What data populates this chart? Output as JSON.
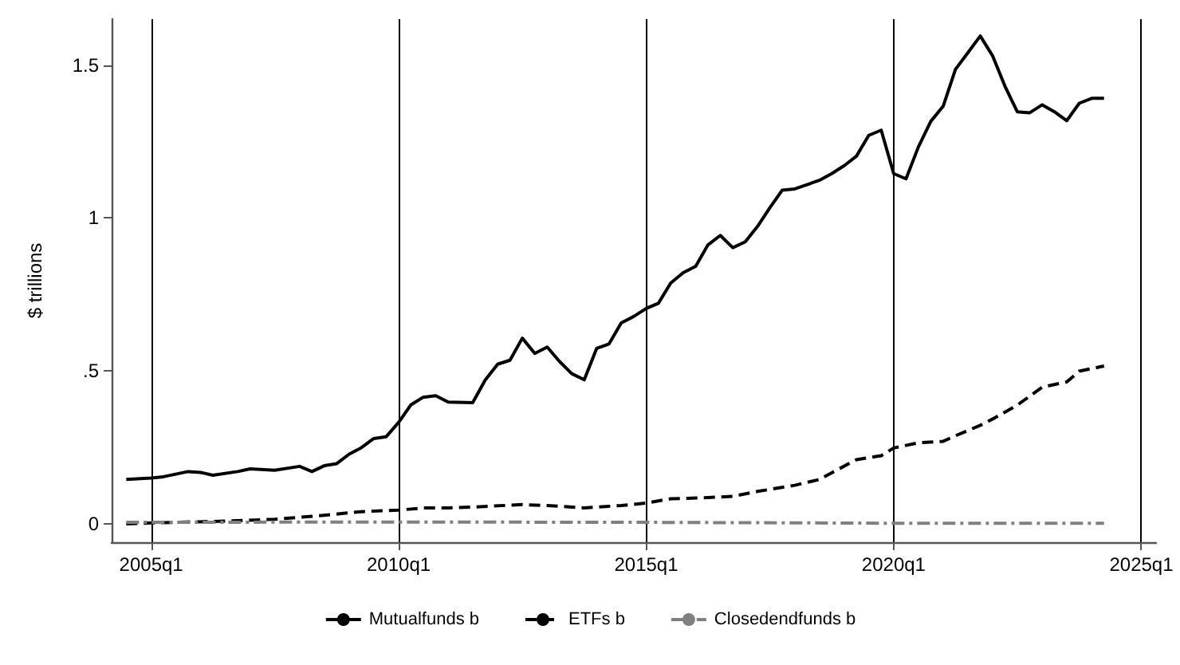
{
  "chart_data": {
    "type": "line",
    "ylabel": "$ trillions",
    "xlim": [
      "2004-03-15",
      "2025-04-20"
    ],
    "ylim": [
      -0.06,
      1.65
    ],
    "xticks": [
      {
        "value": "2005-01",
        "label": "2005q1"
      },
      {
        "value": "2010-01",
        "label": "2010q1"
      },
      {
        "value": "2015-01",
        "label": "2015q1"
      },
      {
        "value": "2020-01",
        "label": "2020q1"
      },
      {
        "value": "2025-01",
        "label": "2025q1"
      }
    ],
    "yticks": [
      0,
      {
        "value": 0.5,
        "label": ".5"
      },
      1,
      1.5
    ],
    "grid": "x",
    "legend": "bottom",
    "marker": "none",
    "series": [
      {
        "name": "Mutualfunds b",
        "color": "#000000",
        "line_style": "solid",
        "x": [
          "2004-07",
          "2005-01",
          "2005-04",
          "2005-10",
          "2006-01",
          "2006-04",
          "2006-10",
          "2007-01",
          "2007-07",
          "2008-01",
          "2008-04",
          "2008-07",
          "2008-10",
          "2009-01",
          "2009-04",
          "2009-07",
          "2009-10",
          "2010-01",
          "2010-04",
          "2010-07",
          "2010-10",
          "2011-01",
          "2011-07",
          "2011-10",
          "2012-01",
          "2012-04",
          "2012-07",
          "2012-10",
          "2013-01",
          "2013-04",
          "2013-07",
          "2013-10",
          "2014-01",
          "2014-04",
          "2014-07",
          "2014-10",
          "2015-01",
          "2015-04",
          "2015-07",
          "2015-10",
          "2016-01",
          "2016-04",
          "2016-07",
          "2016-10",
          "2017-01",
          "2017-04",
          "2017-07",
          "2017-10",
          "2018-01",
          "2018-07",
          "2018-10",
          "2019-01",
          "2019-04",
          "2019-07",
          "2019-10",
          "2020-01",
          "2020-04",
          "2020-07",
          "2020-10",
          "2021-01",
          "2021-04",
          "2021-07",
          "2021-10",
          "2022-01",
          "2022-04",
          "2022-07",
          "2022-10",
          "2023-01",
          "2023-04",
          "2023-07",
          "2023-10",
          "2024-01",
          "2024-04"
        ],
        "values": [
          0.145,
          0.15,
          0.154,
          0.171,
          0.168,
          0.159,
          0.171,
          0.18,
          0.175,
          0.188,
          0.171,
          0.19,
          0.197,
          0.228,
          0.249,
          0.279,
          0.285,
          0.332,
          0.389,
          0.414,
          0.419,
          0.398,
          0.396,
          0.47,
          0.522,
          0.535,
          0.607,
          0.557,
          0.578,
          0.531,
          0.491,
          0.471,
          0.574,
          0.588,
          0.657,
          0.678,
          0.704,
          0.721,
          0.787,
          0.821,
          0.842,
          0.912,
          0.943,
          0.903,
          0.922,
          0.972,
          1.033,
          1.091,
          1.095,
          1.123,
          1.145,
          1.171,
          1.202,
          1.27,
          1.287,
          1.145,
          1.128,
          1.232,
          1.316,
          1.366,
          1.486,
          1.54,
          1.595,
          1.529,
          1.431,
          1.347,
          1.344,
          1.37,
          1.347,
          1.318,
          1.375,
          1.391,
          1.391
        ]
      },
      {
        "name": "ETFs b",
        "color": "#000000",
        "line_style": "dashed",
        "x": [
          "2004-07",
          "2005-01",
          "2006-07",
          "2007-07",
          "2008-07",
          "2009-04",
          "2010-01",
          "2010-07",
          "2011-01",
          "2011-07",
          "2012-07",
          "2013-01",
          "2013-10",
          "2014-07",
          "2015-01",
          "2015-07",
          "2016-04",
          "2016-10",
          "2017-04",
          "2018-01",
          "2018-07",
          "2018-10",
          "2019-04",
          "2019-10",
          "2020-01",
          "2020-07",
          "2021-01",
          "2021-04",
          "2021-10",
          "2022-01",
          "2022-07",
          "2023-01",
          "2023-07",
          "2023-10",
          "2024-04"
        ],
        "values": [
          0.0,
          0.003,
          0.009,
          0.015,
          0.028,
          0.04,
          0.045,
          0.052,
          0.052,
          0.055,
          0.063,
          0.06,
          0.052,
          0.06,
          0.068,
          0.082,
          0.086,
          0.09,
          0.106,
          0.126,
          0.145,
          0.167,
          0.21,
          0.223,
          0.248,
          0.265,
          0.27,
          0.288,
          0.322,
          0.343,
          0.388,
          0.447,
          0.464,
          0.499,
          0.516
        ]
      },
      {
        "name": "Closedendfunds b",
        "color": "#808080",
        "line_style": "dashdot",
        "x": [
          "2004-07",
          "2010-01",
          "2015-01",
          "2020-01",
          "2024-04"
        ],
        "values": [
          0.005,
          0.006,
          0.005,
          0.002,
          0.002
        ]
      }
    ]
  }
}
